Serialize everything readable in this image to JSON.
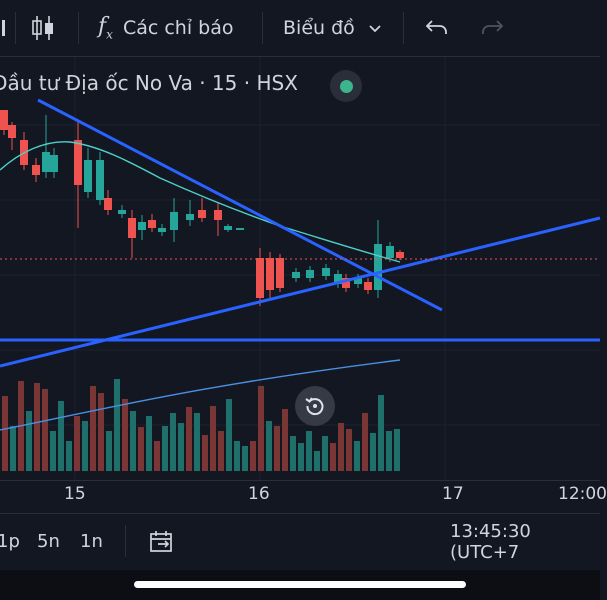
{
  "toolbar": {
    "indicators_label": "Các chỉ báo",
    "chart_type_label": "Biểu đồ"
  },
  "symbol": {
    "title": "Đầu tư Địa ốc No Va · 15 · HSX",
    "status_color": "#3cb48c"
  },
  "x_axis": {
    "labels": [
      "15",
      "16",
      "17",
      "12:00"
    ]
  },
  "bottom": {
    "intervals": [
      "1p",
      "5n",
      "1n"
    ],
    "time": "13:45:30 (UTC+7"
  },
  "colors": {
    "up": "#26a69a",
    "down": "#ef5350",
    "trendline": "#2962ff",
    "ma": "#4dd0c8",
    "volume_ma": "#4a90e2",
    "background": "#131722"
  },
  "icons": [
    "candles-icon",
    "function-icon",
    "chevron-down-icon",
    "undo-icon",
    "redo-icon",
    "reset-zoom-icon",
    "date-range-icon"
  ]
}
